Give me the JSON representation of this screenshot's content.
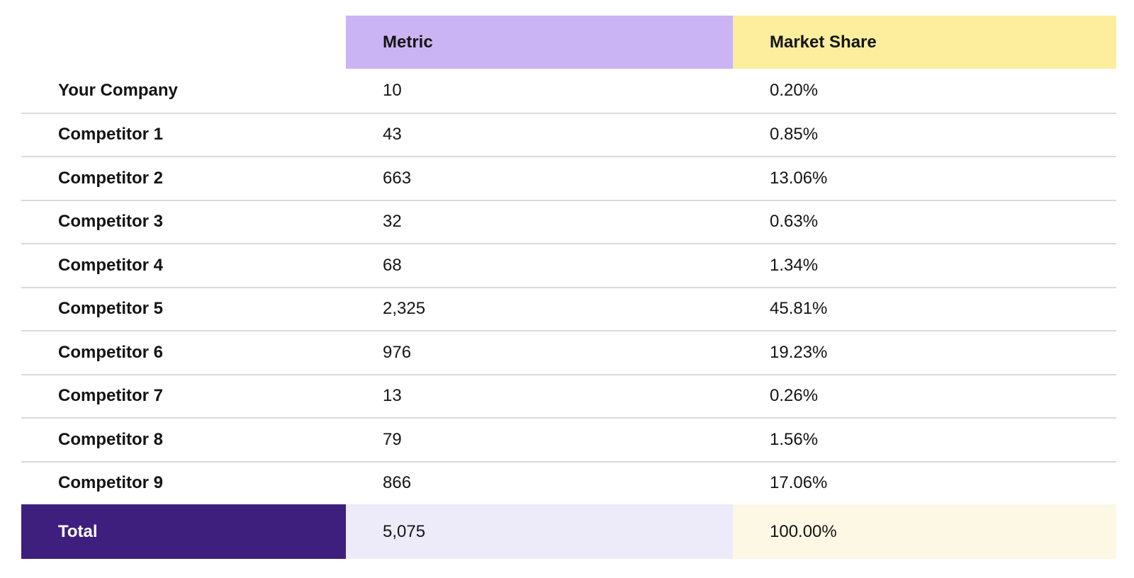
{
  "table": {
    "headers": {
      "metric": "Metric",
      "market_share": "Market Share"
    },
    "rows": [
      {
        "label": "Your Company",
        "metric": "10",
        "share": "0.20%"
      },
      {
        "label": "Competitor 1",
        "metric": "43",
        "share": "0.85%"
      },
      {
        "label": "Competitor 2",
        "metric": "663",
        "share": "13.06%"
      },
      {
        "label": "Competitor 3",
        "metric": "32",
        "share": "0.63%"
      },
      {
        "label": "Competitor 4",
        "metric": "68",
        "share": "1.34%"
      },
      {
        "label": "Competitor 5",
        "metric": "2,325",
        "share": "45.81%"
      },
      {
        "label": "Competitor 6",
        "metric": "976",
        "share": "19.23%"
      },
      {
        "label": "Competitor 7",
        "metric": "13",
        "share": "0.26%"
      },
      {
        "label": "Competitor 8",
        "metric": "79",
        "share": "1.56%"
      },
      {
        "label": "Competitor 9",
        "metric": "866",
        "share": "17.06%"
      }
    ],
    "total": {
      "label": "Total",
      "metric": "5,075",
      "share": "100.00%"
    }
  },
  "chart_data": {
    "type": "table",
    "columns": [
      "",
      "Metric",
      "Market Share"
    ],
    "rows": [
      [
        "Your Company",
        10,
        0.2
      ],
      [
        "Competitor 1",
        43,
        0.85
      ],
      [
        "Competitor 2",
        663,
        13.06
      ],
      [
        "Competitor 3",
        32,
        0.63
      ],
      [
        "Competitor 4",
        68,
        1.34
      ],
      [
        "Competitor 5",
        2325,
        45.81
      ],
      [
        "Competitor 6",
        976,
        19.23
      ],
      [
        "Competitor 7",
        13,
        0.26
      ],
      [
        "Competitor 8",
        79,
        1.56
      ],
      [
        "Competitor 9",
        866,
        17.06
      ]
    ],
    "total_row": [
      "Total",
      5075,
      100.0
    ],
    "market_share_unit": "%"
  },
  "colors": {
    "metric_header_bg": "#cbb4f3",
    "market_share_header_bg": "#fcee9d",
    "total_label_bg": "#3e1f7e",
    "total_metric_bg": "#edeafa",
    "total_share_bg": "#fdf8e3",
    "row_divider": "#d9d9d9",
    "text": "#141414",
    "total_label_text": "#ffffff"
  }
}
